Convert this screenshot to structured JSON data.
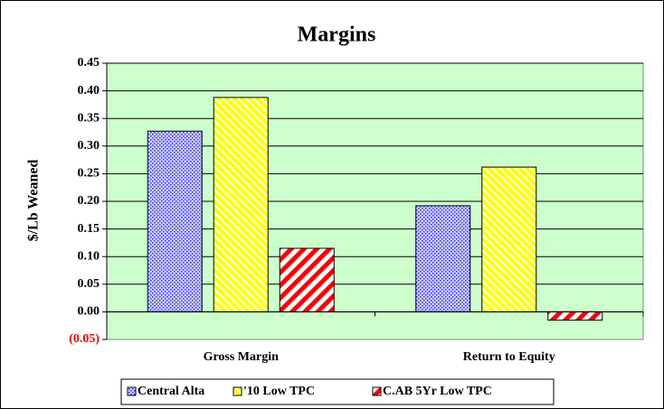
{
  "chart_data": {
    "type": "bar",
    "title": "Margins",
    "y_label": "$/Lb Weaned",
    "categories": [
      "Gross Margin",
      "Return to Equity"
    ],
    "series": [
      {
        "name": "Central Alta",
        "color": "#3333ff",
        "pattern": "dots",
        "values": [
          0.327,
          0.192
        ]
      },
      {
        "name": "'10 Low TPC",
        "color": "#ffff00",
        "pattern": "thin-stripes",
        "values": [
          0.388,
          0.262
        ]
      },
      {
        "name": "C.AB 5Yr Low TPC",
        "color": "#ff0000",
        "pattern": "thick-stripes",
        "values": [
          0.115,
          -0.015
        ]
      }
    ],
    "ylim": [
      -0.05,
      0.45
    ],
    "yticks": [
      {
        "value": -0.05,
        "label": "(0.05)"
      },
      {
        "value": 0,
        "label": "0.00"
      },
      {
        "value": 0.05,
        "label": "0.05"
      },
      {
        "value": 0.1,
        "label": "0.10"
      },
      {
        "value": 0.15,
        "label": "0.15"
      },
      {
        "value": 0.2,
        "label": "0.20"
      },
      {
        "value": 0.25,
        "label": "0.25"
      },
      {
        "value": 0.3,
        "label": "0.30"
      },
      {
        "value": 0.35,
        "label": "0.35"
      },
      {
        "value": 0.4,
        "label": "0.40"
      },
      {
        "value": 0.45,
        "label": "0.45"
      }
    ],
    "negative_tick_color": "#ff0000",
    "plot_background": "#ccffcc",
    "grid": true,
    "legend": "bottom"
  }
}
